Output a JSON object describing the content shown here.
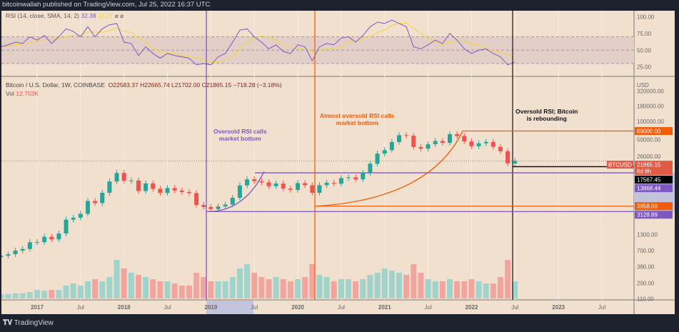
{
  "header": {
    "text": "bitcoinwallah published on TradingView.com, Jul 25, 2022 16:37 UTC"
  },
  "rsi_legend": {
    "label": "RSI (14, close, SMA, 14, 2)",
    "value": "32.38",
    "sma_value": "32.27",
    "icons": "⌀ ⌀"
  },
  "price_legend": {
    "symbol": "Bitcoin / U.S. Dollar, 1W, COINBASE",
    "open": "O22583.37",
    "high": "H22665.74",
    "low": "L21702.00",
    "close": "C21865.15",
    "change": "−718.28 (−3.18%)",
    "vol_label": "Vol",
    "vol_value": "12.753K"
  },
  "annotations": {
    "purple": "Oversold RSI calls\nmarket bottom",
    "orange": "Almost oversold RSI calls\nmarket bottom",
    "black": "Oversold RSI; Bitcoin\nis rebounding"
  },
  "footer": {
    "logo_text": "TradingView"
  },
  "colors": {
    "bg": "#f2e0cf",
    "up": "#26a69a",
    "down": "#ef5350",
    "purple": "#7e57c2",
    "orange": "#f05c0a",
    "black": "#000000",
    "rsi_sma": "#f5d43b"
  },
  "chart_data": {
    "type": "candlestick",
    "scale": "log",
    "currency_label": "USD",
    "rsi_axis_ticks": [
      "100.00",
      "75.00",
      "50.00",
      "25.00"
    ],
    "price_axis_ticks": [
      "320000.00",
      "180000.00",
      "100000.00",
      "50000.00",
      "26000.00",
      "1300.00",
      "700.00",
      "380.00",
      "200.00",
      "110.00"
    ],
    "time_ticks": [
      "2017",
      "Jul",
      "2018",
      "Jul",
      "2019",
      "Jul",
      "2020",
      "Jul",
      "2021",
      "Jul",
      "2022",
      "Jul",
      "2023",
      "Jul"
    ],
    "months_start": "2016-08",
    "closes": [
      575,
      610,
      700,
      745,
      965,
      970,
      1190,
      1080,
      1350,
      2300,
      2480,
      2870,
      4700,
      4340,
      6450,
      9950,
      13800,
      10200,
      10300,
      6900,
      9250,
      7500,
      6400,
      7730,
      7030,
      6630,
      6370,
      4040,
      3740,
      3460,
      3820,
      4100,
      5320,
      8560,
      10800,
      10080,
      9630,
      8300,
      9200,
      7560,
      7200,
      9350,
      8600,
      6440,
      8630,
      9450,
      9140,
      11350,
      11650,
      10780,
      13800,
      19700,
      29000,
      33100,
      45200,
      58900,
      57700,
      37300,
      35000,
      41500,
      47100,
      43800,
      61300,
      57000,
      46300,
      38500,
      43200,
      45500,
      37700,
      31800,
      19900,
      21865
    ],
    "volume_relative": [
      0.1,
      0.1,
      0.12,
      0.12,
      0.15,
      0.2,
      0.18,
      0.2,
      0.2,
      0.3,
      0.35,
      0.3,
      0.4,
      0.45,
      0.4,
      0.5,
      0.9,
      0.7,
      0.6,
      0.55,
      0.5,
      0.45,
      0.4,
      0.4,
      0.35,
      0.3,
      0.3,
      0.6,
      0.5,
      0.4,
      0.4,
      0.4,
      0.5,
      0.7,
      0.8,
      0.6,
      0.5,
      0.45,
      0.5,
      0.45,
      0.4,
      0.45,
      0.5,
      0.8,
      0.55,
      0.5,
      0.4,
      0.45,
      0.45,
      0.4,
      0.45,
      0.55,
      0.6,
      0.7,
      0.65,
      0.6,
      0.55,
      0.8,
      0.6,
      0.45,
      0.4,
      0.4,
      0.45,
      0.4,
      0.4,
      0.45,
      0.4,
      0.35,
      0.35,
      0.5,
      0.9,
      0.4
    ],
    "rsi": [
      55,
      58,
      62,
      60,
      70,
      65,
      72,
      60,
      70,
      82,
      78,
      70,
      85,
      70,
      82,
      88,
      90,
      62,
      60,
      42,
      55,
      45,
      38,
      45,
      42,
      40,
      38,
      28,
      30,
      28,
      40,
      45,
      62,
      80,
      82,
      70,
      62,
      52,
      58,
      48,
      45,
      58,
      55,
      34,
      55,
      60,
      58,
      68,
      70,
      62,
      72,
      85,
      92,
      90,
      95,
      90,
      85,
      55,
      52,
      58,
      65,
      60,
      75,
      65,
      52,
      45,
      50,
      52,
      45,
      40,
      28,
      32
    ],
    "levels": [
      {
        "value": 69000,
        "label": "69000.00",
        "color": "#f05c0a"
      },
      {
        "value": 21865.15,
        "label": "21865.15",
        "sub": "6d 8h",
        "tag": "BTCUSD",
        "color": "#e05a46"
      },
      {
        "value": 17567.45,
        "label": "17567.45",
        "color": "#000000"
      },
      {
        "value": 13868.44,
        "label": "13868.44",
        "color": "#7e57c2"
      },
      {
        "value": 3858.0,
        "label": "3858.00",
        "color": "#f05c0a"
      },
      {
        "value": 3128.89,
        "label": "3128.89",
        "color": "#7e57c2"
      }
    ]
  }
}
